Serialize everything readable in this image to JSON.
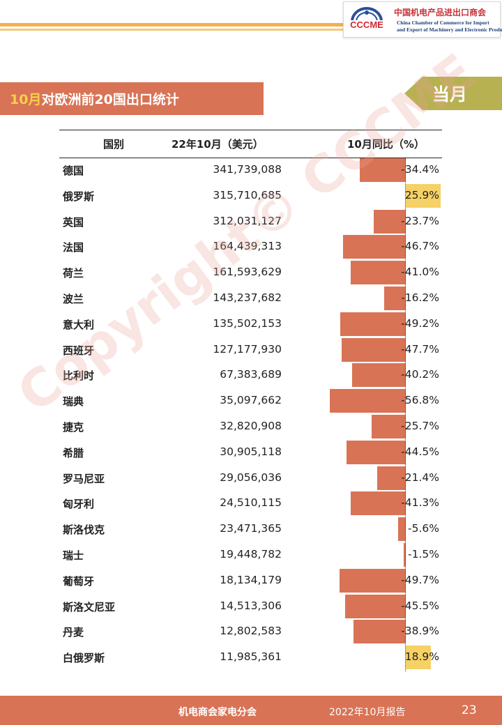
{
  "header": {
    "logo_text": "CCCME",
    "org_name_cn": "中国机电产品进出口商会",
    "org_name_en_line1": "China Chamber of Commerce for Import",
    "org_name_en_line2": "and Export of Machinery and Electronic Products"
  },
  "title": {
    "highlight": "10月",
    "rest": "对欧洲前20国出口统计"
  },
  "period_tag": "当月",
  "table": {
    "columns": [
      "国别",
      "22年10月（美元）",
      "10月同比（%）"
    ],
    "rows": [
      {
        "country": "德国",
        "value": "341,739,088",
        "yoy": "-34.4%"
      },
      {
        "country": "俄罗斯",
        "value": "315,710,685",
        "yoy": "25.9%"
      },
      {
        "country": "英国",
        "value": "312,031,127",
        "yoy": "-23.7%"
      },
      {
        "country": "法国",
        "value": "164,439,313",
        "yoy": "-46.7%"
      },
      {
        "country": "荷兰",
        "value": "161,593,629",
        "yoy": "-41.0%"
      },
      {
        "country": "波兰",
        "value": "143,237,682",
        "yoy": "-16.2%"
      },
      {
        "country": "意大利",
        "value": "135,502,153",
        "yoy": "-49.2%"
      },
      {
        "country": "西班牙",
        "value": "127,177,930",
        "yoy": "-47.7%"
      },
      {
        "country": "比利时",
        "value": "67,383,689",
        "yoy": "-40.2%"
      },
      {
        "country": "瑞典",
        "value": "35,097,662",
        "yoy": "-56.8%"
      },
      {
        "country": "捷克",
        "value": "32,820,908",
        "yoy": "-25.7%"
      },
      {
        "country": "希腊",
        "value": "30,905,118",
        "yoy": "-44.5%"
      },
      {
        "country": "罗马尼亚",
        "value": "29,056,036",
        "yoy": "-21.4%"
      },
      {
        "country": "匈牙利",
        "value": "24,510,115",
        "yoy": "-41.3%"
      },
      {
        "country": "斯洛伐克",
        "value": "23,471,365",
        "yoy": "-5.6%"
      },
      {
        "country": "瑞士",
        "value": "19,448,782",
        "yoy": "-1.5%"
      },
      {
        "country": "葡萄牙",
        "value": "18,134,179",
        "yoy": "-49.7%"
      },
      {
        "country": "斯洛文尼亚",
        "value": "14,513,306",
        "yoy": "-45.5%"
      },
      {
        "country": "丹麦",
        "value": "12,802,583",
        "yoy": "-38.9%"
      },
      {
        "country": "白俄罗斯",
        "value": "11,985,361",
        "yoy": "18.9%"
      }
    ]
  },
  "chart_data": {
    "type": "bar",
    "categories": [
      "德国",
      "俄罗斯",
      "英国",
      "法国",
      "荷兰",
      "波兰",
      "意大利",
      "西班牙",
      "比利时",
      "瑞典",
      "捷克",
      "希腊",
      "罗马尼亚",
      "匈牙利",
      "斯洛伐克",
      "瑞士",
      "葡萄牙",
      "斯洛文尼亚",
      "丹麦",
      "白俄罗斯"
    ],
    "series": [
      {
        "name": "10月同比（%）",
        "values": [
          -34.4,
          25.9,
          -23.7,
          -46.7,
          -41.0,
          -16.2,
          -49.2,
          -47.7,
          -40.2,
          -56.8,
          -25.7,
          -44.5,
          -21.4,
          -41.3,
          -5.6,
          -1.5,
          -49.7,
          -45.5,
          -38.9,
          18.9
        ]
      }
    ],
    "orientation": "horizontal",
    "colors": {
      "negative": "#d97355",
      "positive": "#f5d166"
    }
  },
  "watermark": "Copyright© CCCME",
  "footer": {
    "org": "机电商会家电分会",
    "report": "2022年10月报告",
    "page": "23"
  },
  "colors": {
    "accent": "#d97355",
    "highlight": "#f6cf4b",
    "tag": "#b8b152",
    "header_stripe": "#f2b04e"
  }
}
